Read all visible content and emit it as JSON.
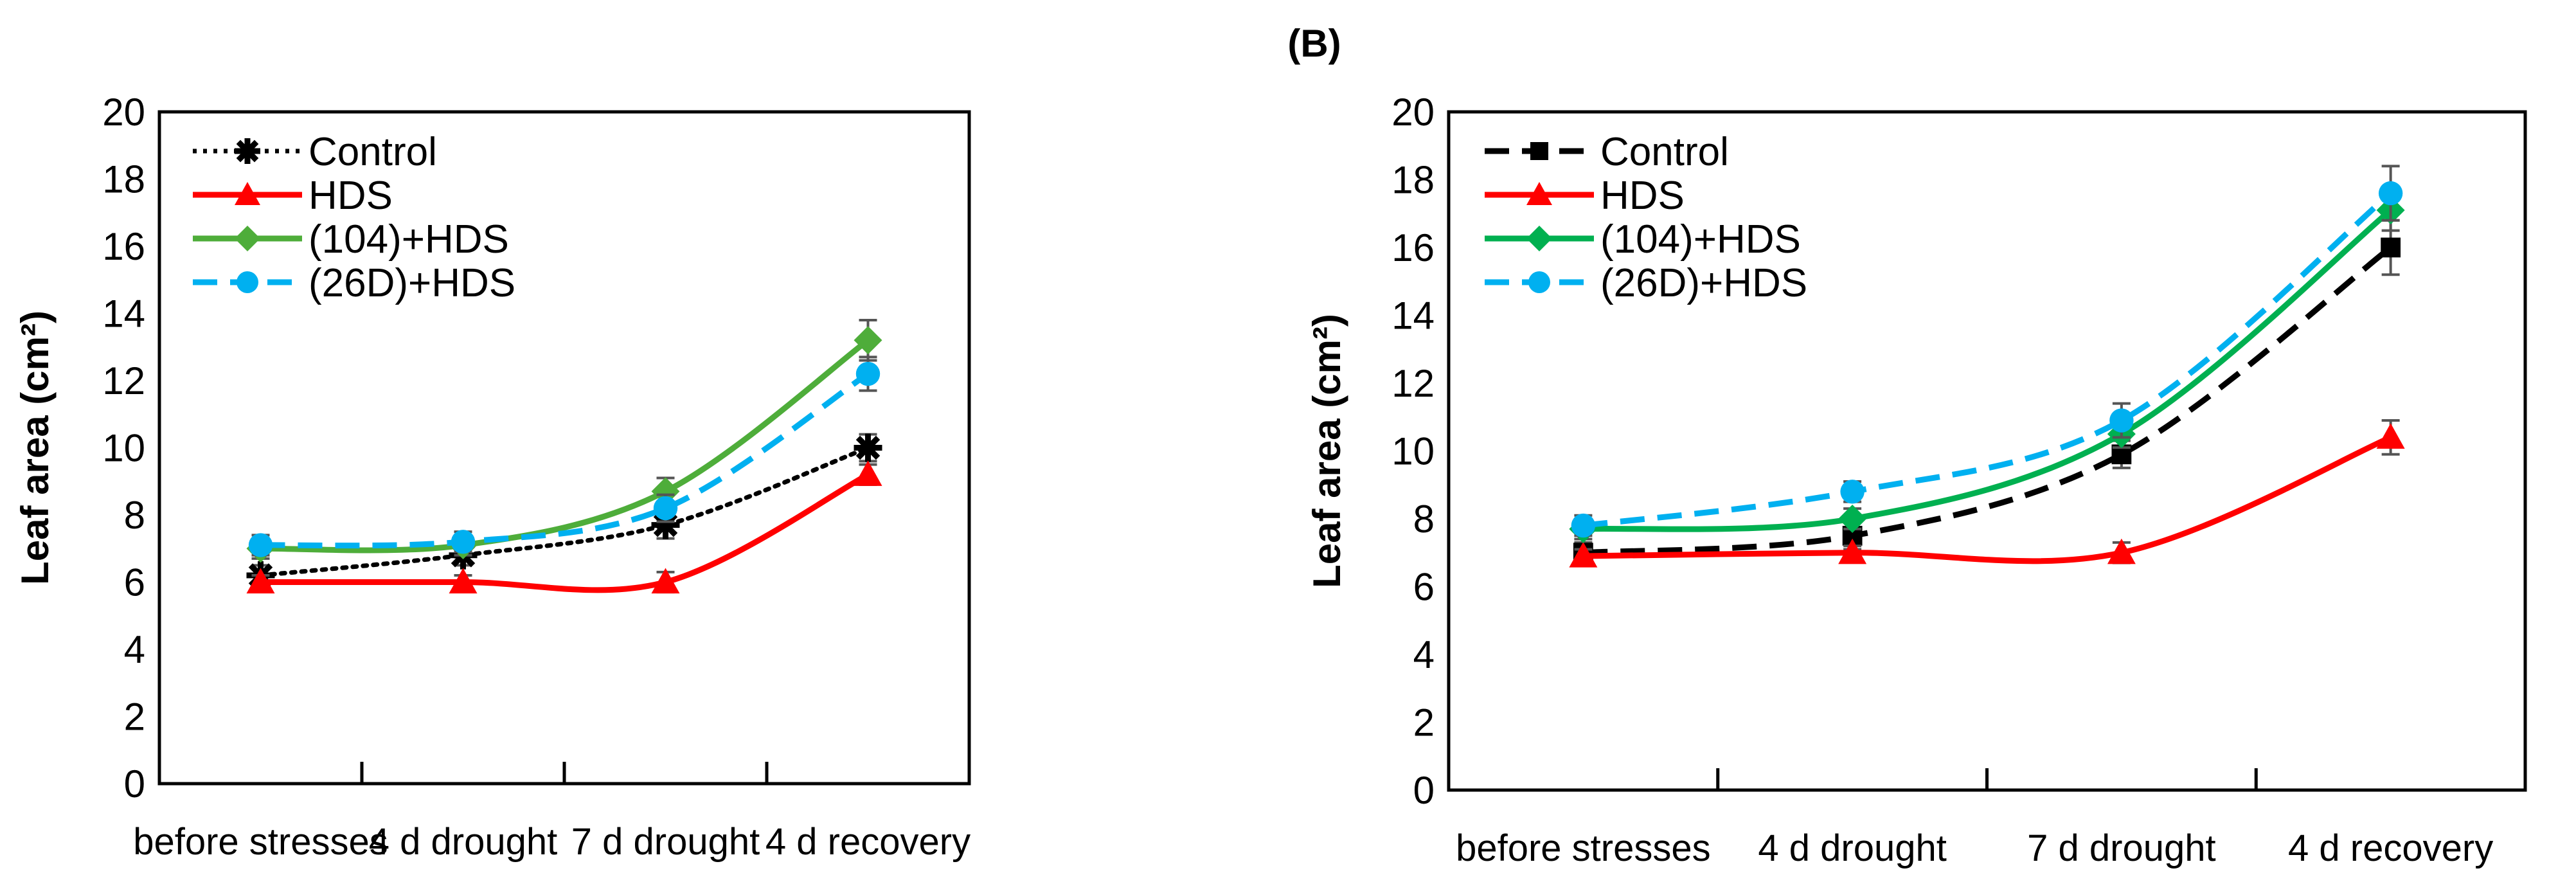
{
  "panel_label": "(B)",
  "chart_data": [
    {
      "type": "line",
      "title": "",
      "xlabel": "",
      "ylabel": "Leaf area (cm²)",
      "ylim": [
        0,
        20
      ],
      "yticks": [
        0,
        2,
        4,
        6,
        8,
        10,
        12,
        14,
        16,
        18,
        20
      ],
      "categories": [
        "before stresses",
        "4 d drought",
        "7 d drought",
        "4 d recovery"
      ],
      "legend_position": "top-left",
      "grid": false,
      "series": [
        {
          "name": "Control",
          "color": "#000000",
          "style": "dotted",
          "marker": "asterisk",
          "values": [
            6.2,
            6.8,
            7.7,
            10.0
          ],
          "errors": [
            0.3,
            0.3,
            0.4,
            0.4
          ]
        },
        {
          "name": "HDS",
          "color": "#ff0000",
          "style": "solid",
          "marker": "triangle",
          "values": [
            6.0,
            6.0,
            6.0,
            9.2
          ],
          "errors": [
            0.2,
            0.2,
            0.3,
            0.3
          ]
        },
        {
          "name": "(104)+HDS",
          "color": "#4ead3a",
          "style": "solid",
          "marker": "diamond",
          "values": [
            7.0,
            7.1,
            8.7,
            13.2
          ],
          "errors": [
            0.3,
            0.3,
            0.4,
            0.6
          ]
        },
        {
          "name": "(26D)+HDS",
          "color": "#00b0f0",
          "style": "dashed",
          "marker": "circle",
          "values": [
            7.1,
            7.2,
            8.2,
            12.2
          ],
          "errors": [
            0.3,
            0.3,
            0.4,
            0.5
          ]
        }
      ]
    },
    {
      "type": "line",
      "title": "",
      "xlabel": "",
      "ylabel": "Leaf area (cm²)",
      "ylim": [
        0,
        20
      ],
      "yticks": [
        0,
        2,
        4,
        6,
        8,
        10,
        12,
        14,
        16,
        18,
        20
      ],
      "categories": [
        "before stresses",
        "4 d drought",
        "7 d drought",
        "4 d recovery"
      ],
      "legend_position": "top-left",
      "grid": false,
      "series": [
        {
          "name": "Control",
          "color": "#000000",
          "style": "dashed",
          "marker": "square",
          "values": [
            7.0,
            7.5,
            9.9,
            16.0
          ],
          "errors": [
            0.3,
            0.4,
            0.4,
            0.8
          ]
        },
        {
          "name": "HDS",
          "color": "#ff0000",
          "style": "solid",
          "marker": "triangle",
          "values": [
            6.9,
            7.0,
            7.0,
            10.4
          ],
          "errors": [
            0.2,
            0.2,
            0.3,
            0.5
          ]
        },
        {
          "name": "(104)+HDS",
          "color": "#00b050",
          "style": "solid",
          "marker": "diamond",
          "values": [
            7.7,
            8.0,
            10.5,
            17.1
          ],
          "errors": [
            0.3,
            0.3,
            0.4,
            0.6
          ]
        },
        {
          "name": "(26D)+HDS",
          "color": "#00b0f0",
          "style": "dashed",
          "marker": "circle",
          "values": [
            7.8,
            8.8,
            10.9,
            17.6
          ],
          "errors": [
            0.3,
            0.3,
            0.5,
            0.8
          ]
        }
      ]
    }
  ]
}
